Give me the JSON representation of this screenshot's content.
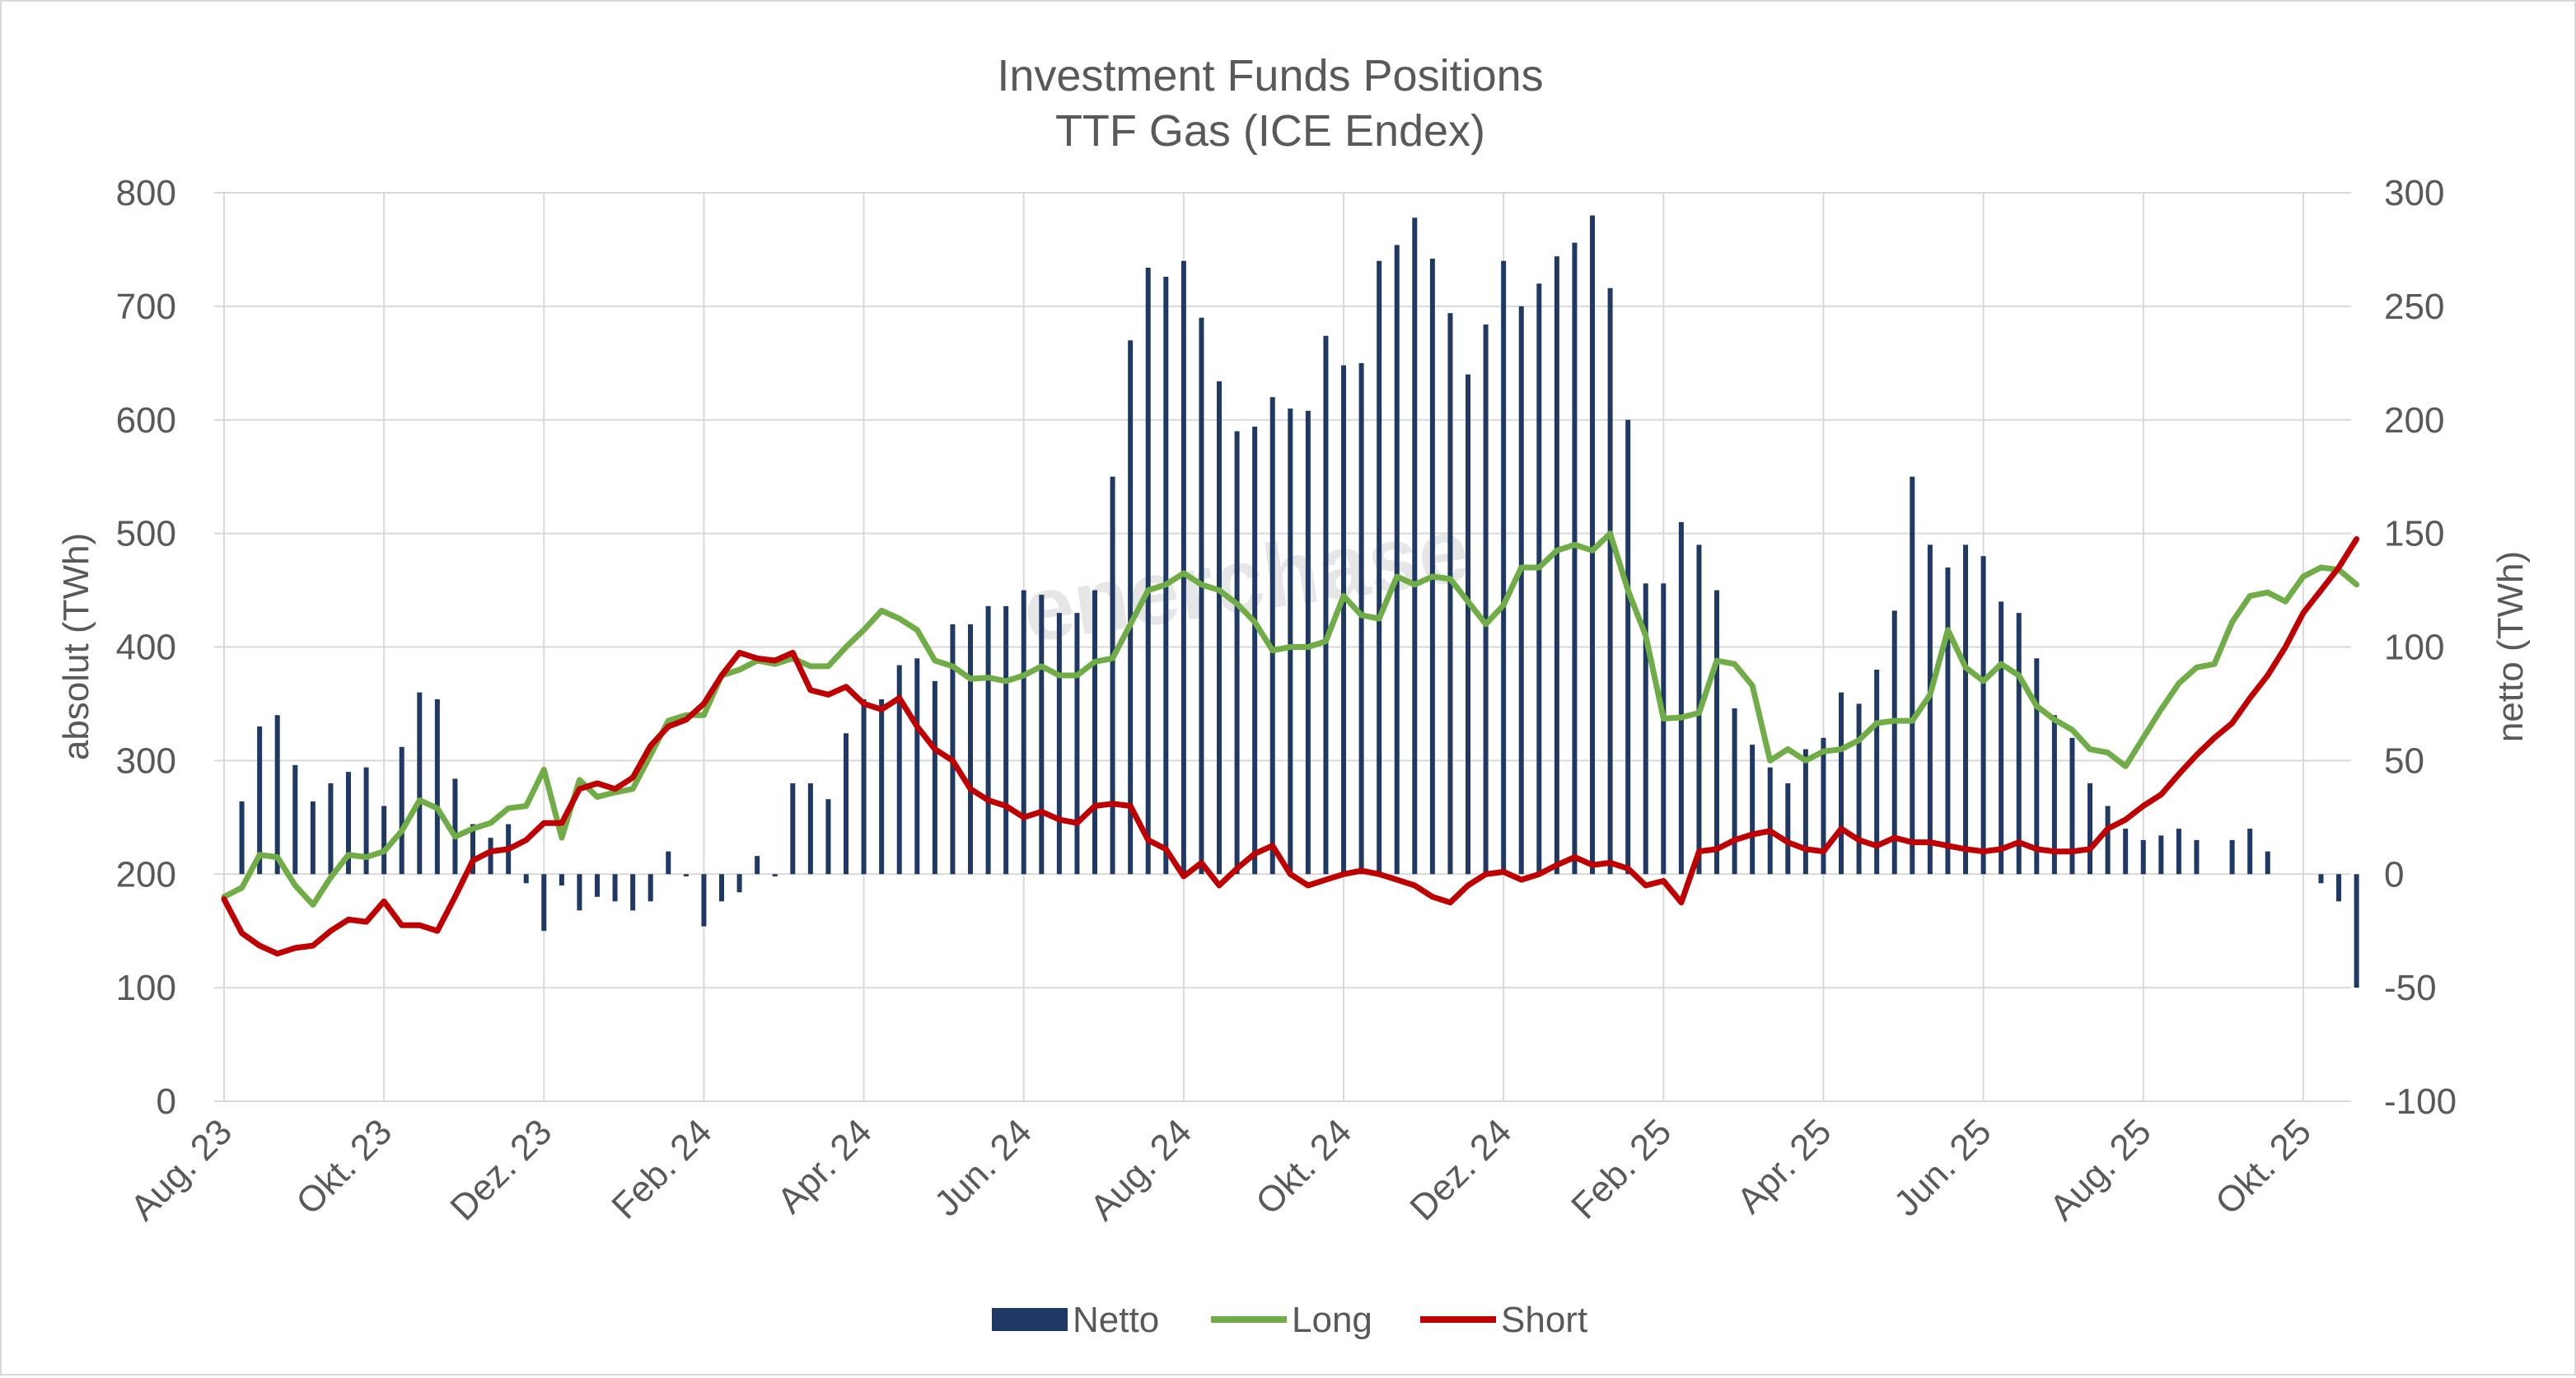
{
  "chart_data": {
    "type": "bar+line",
    "title": [
      "Investment Funds Positions",
      "TTF Gas (ICE Endex)"
    ],
    "ylabel_left": "absolut (TWh)",
    "ylabel_right": "netto (TWh)",
    "ylim_left": [
      0,
      800
    ],
    "ylim_right": [
      -100,
      300
    ],
    "yticks_left": [
      "0",
      "100",
      "200",
      "300",
      "400",
      "500",
      "600",
      "700",
      "800"
    ],
    "yticks_right": [
      "-100",
      "-50",
      "0",
      "50",
      "100",
      "150",
      "200",
      "250",
      "300"
    ],
    "xticks": [
      {
        "label": "Aug. 23",
        "index": 0
      },
      {
        "label": "Okt. 23",
        "index": 9
      },
      {
        "label": "Dez. 23",
        "index": 18
      },
      {
        "label": "Feb. 24",
        "index": 27
      },
      {
        "label": "Apr. 24",
        "index": 36
      },
      {
        "label": "Jun. 24",
        "index": 45
      },
      {
        "label": "Aug. 24",
        "index": 54
      },
      {
        "label": "Okt. 24",
        "index": 63
      },
      {
        "label": "Dez. 24",
        "index": 72
      },
      {
        "label": "Feb. 25",
        "index": 81
      },
      {
        "label": "Apr. 25",
        "index": 90
      },
      {
        "label": "Jun. 25",
        "index": 99
      },
      {
        "label": "Aug. 25",
        "index": 108
      },
      {
        "label": "Okt. 25",
        "index": 117
      }
    ],
    "grid": true,
    "legend_position": "bottom",
    "watermark": "enerchase",
    "series": [
      {
        "name": "Netto",
        "type": "bar",
        "axis": "right",
        "color": "#1f3864",
        "values": [
          0,
          32,
          65,
          70,
          48,
          32,
          40,
          45,
          47,
          30,
          56,
          80,
          77,
          42,
          22,
          16,
          22,
          -4,
          -25,
          -5,
          -16,
          -10,
          -12,
          -16,
          -12,
          10,
          -1,
          -23,
          -12,
          -8,
          8,
          -1,
          40,
          40,
          33,
          62,
          77,
          77,
          92,
          95,
          85,
          110,
          110,
          118,
          118,
          125,
          123,
          115,
          115,
          125,
          175,
          235,
          267,
          263,
          270,
          245,
          217,
          195,
          197,
          210,
          205,
          204,
          237,
          224,
          225,
          270,
          277,
          289,
          271,
          247,
          220,
          242,
          270,
          250,
          260,
          272,
          278,
          290,
          258,
          200,
          128,
          128,
          155,
          145,
          125,
          73,
          57,
          47,
          40,
          55,
          60,
          80,
          75,
          90,
          116,
          175,
          145,
          135,
          145,
          140,
          120,
          115,
          95,
          70,
          60,
          40,
          30,
          20,
          15,
          17,
          20,
          15,
          0,
          15,
          20,
          10,
          0,
          0,
          -4,
          -12,
          -50
        ]
      },
      {
        "name": "Long",
        "type": "line",
        "axis": "left",
        "color": "#70ad47",
        "values": [
          180,
          188,
          217,
          215,
          190,
          173,
          197,
          217,
          215,
          220,
          238,
          265,
          258,
          233,
          240,
          245,
          258,
          260,
          292,
          232,
          283,
          268,
          272,
          275,
          305,
          335,
          340,
          340,
          375,
          380,
          388,
          385,
          390,
          383,
          383,
          400,
          415,
          432,
          425,
          415,
          388,
          383,
          372,
          373,
          370,
          375,
          383,
          375,
          375,
          387,
          390,
          420,
          450,
          455,
          465,
          455,
          450,
          438,
          422,
          397,
          400,
          400,
          405,
          445,
          428,
          425,
          462,
          455,
          462,
          460,
          440,
          420,
          437,
          470,
          470,
          485,
          490,
          485,
          500,
          450,
          410,
          337,
          338,
          342,
          388,
          385,
          366,
          300,
          310,
          300,
          308,
          310,
          318,
          333,
          335,
          335,
          358,
          415,
          382,
          370,
          385,
          375,
          348,
          336,
          327,
          310,
          307,
          295,
          320,
          345,
          368,
          382,
          385,
          422,
          445,
          448,
          440,
          462,
          470,
          468,
          455
        ]
      },
      {
        "name": "Short",
        "type": "line",
        "axis": "left",
        "color": "#c00000",
        "values": [
          178,
          148,
          137,
          130,
          135,
          137,
          150,
          160,
          158,
          176,
          155,
          155,
          150,
          180,
          212,
          220,
          222,
          230,
          245,
          245,
          275,
          280,
          275,
          285,
          313,
          330,
          336,
          350,
          375,
          395,
          390,
          388,
          395,
          362,
          358,
          365,
          350,
          345,
          355,
          330,
          310,
          300,
          275,
          265,
          260,
          250,
          255,
          248,
          245,
          260,
          262,
          260,
          230,
          222,
          198,
          210,
          190,
          205,
          218,
          225,
          200,
          190,
          195,
          200,
          203,
          200,
          195,
          190,
          180,
          175,
          190,
          200,
          202,
          195,
          200,
          208,
          215,
          208,
          210,
          205,
          190,
          194,
          175,
          220,
          222,
          230,
          235,
          238,
          228,
          222,
          220,
          240,
          230,
          225,
          232,
          228,
          228,
          225,
          222,
          220,
          222,
          228,
          222,
          220,
          220,
          222,
          240,
          248,
          260,
          270,
          288,
          305,
          320,
          333,
          355,
          375,
          400,
          430,
          450,
          470,
          495
        ]
      }
    ]
  }
}
